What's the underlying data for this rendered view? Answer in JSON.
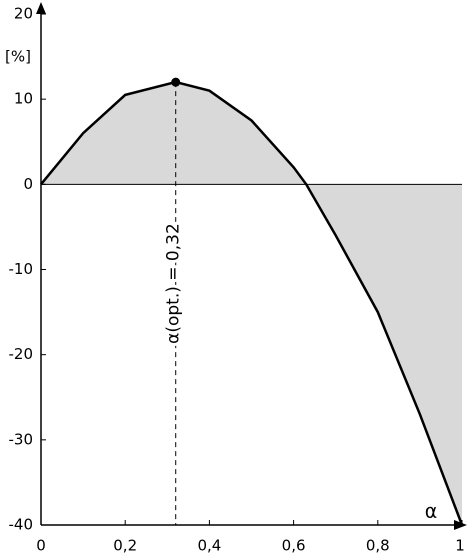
{
  "chart_data": {
    "type": "line",
    "x": [
      0,
      0.1,
      0.2,
      0.32,
      0.4,
      0.5,
      0.6,
      0.63,
      0.7,
      0.8,
      0.9,
      1
    ],
    "series": [
      {
        "color": "#000000",
        "values": [
          0,
          6,
          10.5,
          12,
          11,
          7.5,
          2,
          0,
          -6,
          -15,
          -27,
          -40
        ]
      }
    ],
    "fill_color": "#d9d9d9",
    "xlim": [
      0,
      1
    ],
    "ylim": [
      -40,
      20
    ],
    "xticks": [
      0,
      {
        "value": 0.2,
        "label": "0,2"
      },
      {
        "value": 0.4,
        "label": "0,4"
      },
      {
        "value": 0.6,
        "label": "0,6"
      },
      {
        "value": 0.8,
        "label": "0,8"
      },
      1
    ],
    "yticks": [
      20,
      10,
      0,
      -10,
      -20,
      -30,
      -40
    ],
    "xlabel": "α",
    "ylabel": "[%]",
    "annotation": {
      "text": "α(opt.) = 0,32",
      "x": 0.32,
      "y": 12
    }
  }
}
